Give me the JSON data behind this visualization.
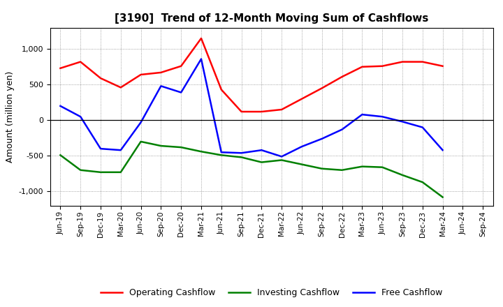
{
  "title": "[3190]  Trend of 12-Month Moving Sum of Cashflows",
  "ylabel": "Amount (million yen)",
  "labels": [
    "Jun-19",
    "Sep-19",
    "Dec-19",
    "Mar-20",
    "Jun-20",
    "Sep-20",
    "Dec-20",
    "Mar-21",
    "Jun-21",
    "Sep-21",
    "Dec-21",
    "Mar-22",
    "Jun-22",
    "Sep-22",
    "Dec-22",
    "Mar-23",
    "Jun-23",
    "Sep-23",
    "Dec-23",
    "Mar-24",
    "Jun-24",
    "Sep-24"
  ],
  "operating": [
    730,
    820,
    590,
    460,
    640,
    670,
    760,
    1150,
    430,
    120,
    120,
    150,
    300,
    450,
    610,
    750,
    760,
    820,
    820,
    760,
    null,
    null
  ],
  "investing": [
    -490,
    -700,
    -730,
    -730,
    -300,
    -360,
    -380,
    -440,
    -490,
    -520,
    -590,
    -560,
    -620,
    -680,
    -700,
    -650,
    -660,
    -770,
    -870,
    -1080,
    null,
    null
  ],
  "free": [
    200,
    50,
    -400,
    -420,
    -30,
    480,
    390,
    860,
    -450,
    -460,
    -420,
    -510,
    -370,
    -260,
    -130,
    80,
    50,
    -20,
    -100,
    -420,
    null,
    null
  ],
  "operating_color": "#ff0000",
  "investing_color": "#008000",
  "free_color": "#0000ff",
  "ylim": [
    -1200,
    1300
  ],
  "yticks": [
    -1000,
    -500,
    0,
    500,
    1000
  ],
  "background": "#ffffff",
  "grid_color": "#555555"
}
